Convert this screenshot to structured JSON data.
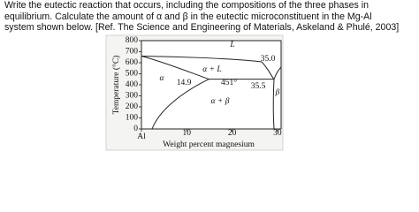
{
  "question": {
    "lines": [
      "Write the eutectic reaction that occurs, including the compositions of the three phases in",
      "equilibrium. Calculate the amount of α and β in the eutectic microconstituent in the Mg-Al",
      "system shown below. [Ref. The Science and Engineering of Materials, Askeland & Phulé, 2003]"
    ]
  },
  "diagram": {
    "y_label": "Temperature (°C)",
    "x_label": "Weight percent magnesium",
    "yticks": [
      0,
      100,
      200,
      300,
      400,
      500,
      600,
      700,
      800
    ],
    "xticks": [
      {
        "value": 0,
        "label": "Al"
      },
      10,
      20,
      30
    ],
    "regions": [
      "L",
      "α + L",
      "α",
      "α + β",
      "β"
    ],
    "points": [
      "35.0",
      "14.9",
      "451°",
      "35.5"
    ]
  }
}
